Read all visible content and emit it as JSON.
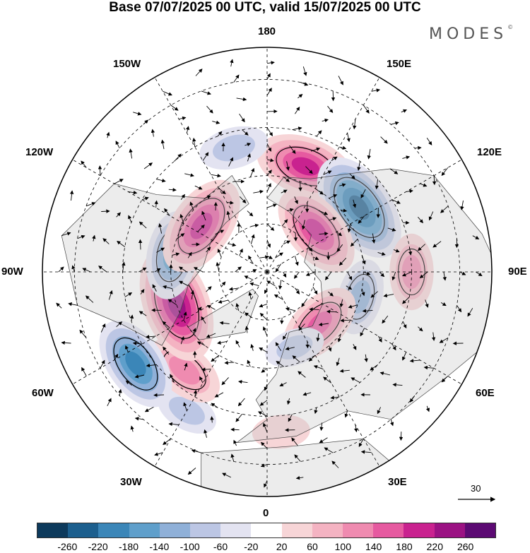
{
  "title": "Base 07/07/2025 00 UTC, valid 15/07/2025 00 UTC",
  "brand": "MODES",
  "brand_mark": "©",
  "longitude_labels": {
    "lon_180": "180",
    "lon_150e": "150E",
    "lon_120e": "120E",
    "lon_90e": "90E",
    "lon_60e": "60E",
    "lon_30e": "30E",
    "lon_0": "0",
    "lon_30w": "30W",
    "lon_60w": "60W",
    "lon_90w": "90W",
    "lon_120w": "120W",
    "lon_150w": "150W"
  },
  "reference_vector": "30",
  "colorbar": {
    "colors": [
      "#0d3a5c",
      "#1c5f8e",
      "#3b86b8",
      "#5f9fcb",
      "#8fb0d8",
      "#bcc6e4",
      "#e3e3f1",
      "#ffffff",
      "#f7d5d7",
      "#f4b3c2",
      "#ef8bb0",
      "#e65aa0",
      "#c9228f",
      "#9b1283",
      "#5c0a73"
    ],
    "ticks": [
      "-260",
      "-220",
      "-180",
      "-140",
      "-100",
      "-60",
      "-20",
      "20",
      "60",
      "100",
      "140",
      "180",
      "220",
      "260"
    ]
  },
  "anomaly_centers": [
    {
      "lon": 160,
      "lat": 55,
      "value": 190
    },
    {
      "lon": 125,
      "lat": 55,
      "value": -230
    },
    {
      "lon": 130,
      "lat": 70,
      "value": 180
    },
    {
      "lon": 90,
      "lat": 45,
      "value": 110
    },
    {
      "lon": 75,
      "lat": 60,
      "value": -110
    },
    {
      "lon": 45,
      "lat": 67,
      "value": 150
    },
    {
      "lon": 5,
      "lat": 40,
      "value": 50
    },
    {
      "lon": -30,
      "lat": 40,
      "value": -70
    },
    {
      "lon": -40,
      "lat": 50,
      "value": 130
    },
    {
      "lon": -55,
      "lat": 40,
      "value": -180
    },
    {
      "lon": -70,
      "lat": 60,
      "value": 240
    },
    {
      "lon": -100,
      "lat": 60,
      "value": -150
    },
    {
      "lon": -125,
      "lat": 65,
      "value": 200
    },
    {
      "lon": -165,
      "lat": 50,
      "value": -90
    },
    {
      "lon": 20,
      "lat": 65,
      "value": -60
    }
  ]
}
